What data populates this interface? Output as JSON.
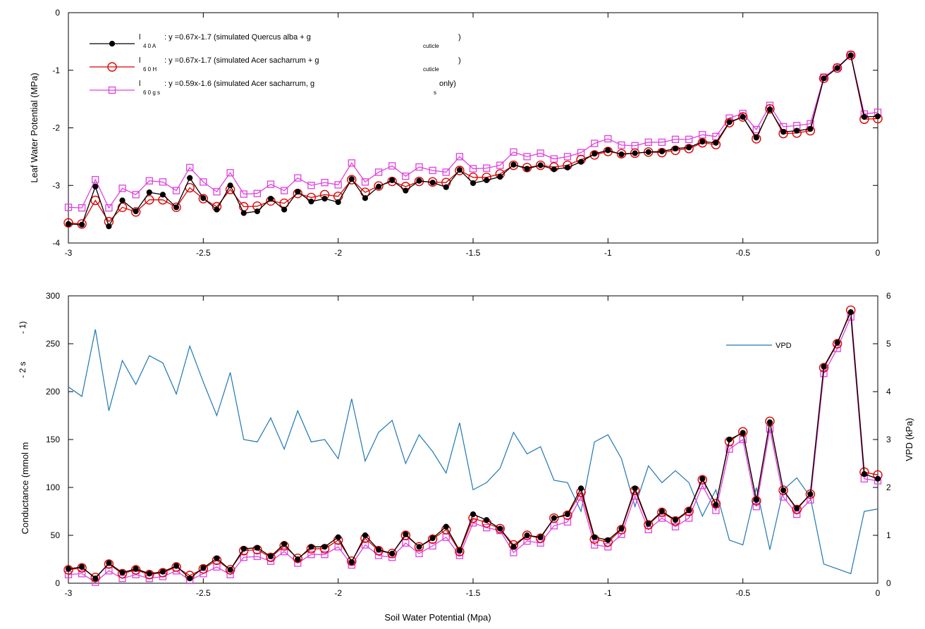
{
  "colors": {
    "quercus": "#000000",
    "acer": "#e00000",
    "acer_gs": "#e040e0",
    "vpd": "#1f77b4",
    "frame": "#000000"
  },
  "chart_data": [
    {
      "type": "line",
      "xlabel": "",
      "ylabel": "Leaf Water Potential (MPa)",
      "xlim": [
        -3,
        0
      ],
      "ylim": [
        -4,
        0
      ],
      "xticks": [
        "-3",
        "-2.5",
        "-2",
        "-1.5",
        "-1",
        "-0.5",
        "0"
      ],
      "yticks": [
        "-4",
        "-3",
        "-2",
        "-1",
        "0"
      ],
      "legend_position": "top-left",
      "grid": false,
      "x": [
        -3.0,
        -2.95,
        -2.9,
        -2.85,
        -2.8,
        -2.75,
        -2.7,
        -2.65,
        -2.6,
        -2.55,
        -2.5,
        -2.45,
        -2.4,
        -2.35,
        -2.3,
        -2.25,
        -2.2,
        -2.15,
        -2.1,
        -2.05,
        -2.0,
        -1.95,
        -1.9,
        -1.85,
        -1.8,
        -1.75,
        -1.7,
        -1.65,
        -1.6,
        -1.55,
        -1.5,
        -1.45,
        -1.4,
        -1.35,
        -1.3,
        -1.25,
        -1.2,
        -1.15,
        -1.1,
        -1.05,
        -1.0,
        -0.95,
        -0.9,
        -0.85,
        -0.8,
        -0.75,
        -0.7,
        -0.65,
        -0.6,
        -0.55,
        -0.5,
        -0.45,
        -0.4,
        -0.35,
        -0.3,
        -0.25,
        -0.2,
        -0.15,
        -0.1,
        -0.05,
        0.0
      ],
      "series": [
        {
          "name": "l40A",
          "legend_main": "l",
          "legend_sub": "4 0 A",
          "legend_text": ": y =0.67x-1.7  (simulated Quercus alba + g",
          "legend_tail_sub": "cuticle",
          "legend_tail": ")",
          "color_key": "quercus",
          "marker": "dot",
          "values": [
            -3.67,
            -3.68,
            -3.02,
            -3.71,
            -3.26,
            -3.45,
            -3.12,
            -3.16,
            -3.38,
            -2.87,
            -3.22,
            -3.42,
            -3.0,
            -3.48,
            -3.45,
            -3.23,
            -3.42,
            -3.11,
            -3.28,
            -3.23,
            -3.29,
            -2.89,
            -3.22,
            -3.02,
            -2.91,
            -3.09,
            -2.92,
            -2.95,
            -3.03,
            -2.73,
            -2.96,
            -2.91,
            -2.85,
            -2.64,
            -2.71,
            -2.65,
            -2.72,
            -2.69,
            -2.59,
            -2.45,
            -2.39,
            -2.46,
            -2.44,
            -2.42,
            -2.41,
            -2.36,
            -2.34,
            -2.24,
            -2.26,
            -1.9,
            -1.81,
            -2.17,
            -1.68,
            -2.07,
            -2.05,
            -2.02,
            -1.14,
            -0.96,
            -0.74,
            -1.81,
            -1.8
          ]
        },
        {
          "name": "l60H",
          "legend_main": "l",
          "legend_sub": "6 0 H",
          "legend_text": ": y =0.67x-1.7  (simulated Acer sacharrum + g",
          "legend_tail_sub": "cuticle",
          "legend_tail": ")",
          "color_key": "acer",
          "marker": "circle",
          "values": [
            -3.65,
            -3.67,
            -3.26,
            -3.63,
            -3.38,
            -3.46,
            -3.25,
            -3.25,
            -3.38,
            -3.04,
            -3.23,
            -3.37,
            -3.07,
            -3.37,
            -3.36,
            -3.27,
            -3.31,
            -3.14,
            -3.21,
            -3.16,
            -3.19,
            -2.9,
            -3.12,
            -3.01,
            -2.93,
            -3.02,
            -2.93,
            -2.94,
            -2.95,
            -2.74,
            -2.86,
            -2.86,
            -2.8,
            -2.65,
            -2.69,
            -2.65,
            -2.68,
            -2.65,
            -2.55,
            -2.47,
            -2.41,
            -2.45,
            -2.44,
            -2.42,
            -2.43,
            -2.39,
            -2.36,
            -2.26,
            -2.29,
            -1.91,
            -1.81,
            -2.19,
            -1.67,
            -2.1,
            -2.09,
            -2.05,
            -1.14,
            -0.96,
            -0.74,
            -1.85,
            -1.84
          ]
        },
        {
          "name": "l60gs",
          "legend_main": "l",
          "legend_sub": "6 0 g s",
          "legend_text": ": y =0.59x-1.6 (simulated Acer sacharrum, g",
          "legend_tail_sub": "s",
          "legend_tail": "only)",
          "color_key": "acer_gs",
          "marker": "square",
          "values": [
            -3.38,
            -3.39,
            -2.9,
            -3.39,
            -3.05,
            -3.16,
            -2.92,
            -2.94,
            -3.09,
            -2.69,
            -2.94,
            -3.11,
            -2.78,
            -3.15,
            -3.14,
            -2.98,
            -3.09,
            -2.87,
            -3.0,
            -2.95,
            -2.99,
            -2.61,
            -2.94,
            -2.77,
            -2.66,
            -2.84,
            -2.68,
            -2.74,
            -2.77,
            -2.5,
            -2.71,
            -2.7,
            -2.65,
            -2.42,
            -2.5,
            -2.44,
            -2.54,
            -2.5,
            -2.43,
            -2.27,
            -2.19,
            -2.3,
            -2.31,
            -2.25,
            -2.25,
            -2.2,
            -2.2,
            -2.12,
            -2.15,
            -1.83,
            -1.75,
            -2.03,
            -1.61,
            -1.98,
            -1.96,
            -1.93,
            -1.12,
            -0.95,
            -0.73,
            -1.76,
            -1.73
          ]
        }
      ]
    },
    {
      "type": "line",
      "xlabel": "Soil Water Potential (Mpa)",
      "ylabel": "Conductance (mmol m",
      "ylabel_sup1": "- 2 s",
      "ylabel_sup2": "- 1)",
      "y2label": "VPD (kPa)",
      "xlim": [
        -3,
        0
      ],
      "ylim": [
        0,
        300
      ],
      "y2lim": [
        0,
        6
      ],
      "xticks": [
        "-3",
        "-2.5",
        "-2",
        "-1.5",
        "-1",
        "-0.5",
        "0"
      ],
      "yticks": [
        "0",
        "50",
        "100",
        "150",
        "200",
        "250",
        "300"
      ],
      "y2ticks": [
        "0",
        "1",
        "2",
        "3",
        "4",
        "5",
        "6"
      ],
      "legend_position": "top-right",
      "grid": false,
      "x": [
        -3.0,
        -2.95,
        -2.9,
        -2.85,
        -2.8,
        -2.75,
        -2.7,
        -2.65,
        -2.6,
        -2.55,
        -2.5,
        -2.45,
        -2.4,
        -2.35,
        -2.3,
        -2.25,
        -2.2,
        -2.15,
        -2.1,
        -2.05,
        -2.0,
        -1.95,
        -1.9,
        -1.85,
        -1.8,
        -1.75,
        -1.7,
        -1.65,
        -1.6,
        -1.55,
        -1.5,
        -1.45,
        -1.4,
        -1.35,
        -1.3,
        -1.25,
        -1.2,
        -1.15,
        -1.1,
        -1.05,
        -1.0,
        -0.95,
        -0.9,
        -0.85,
        -0.8,
        -0.75,
        -0.7,
        -0.65,
        -0.6,
        -0.55,
        -0.5,
        -0.45,
        -0.4,
        -0.35,
        -0.3,
        -0.25,
        -0.2,
        -0.15,
        -0.1,
        -0.05,
        0.0
      ],
      "series": [
        {
          "name": "l40A",
          "color_key": "quercus",
          "marker": "dot",
          "axis": "left",
          "values": [
            15,
            17,
            5,
            21,
            11,
            15,
            10,
            12,
            18,
            5,
            16,
            26,
            14,
            36,
            37,
            28,
            41,
            25,
            38,
            38,
            48,
            22,
            50,
            35,
            31,
            51,
            38,
            47,
            59,
            34,
            72,
            66,
            57,
            38,
            50,
            48,
            68,
            72,
            99,
            48,
            45,
            57,
            99,
            62,
            75,
            66,
            76,
            109,
            82,
            150,
            157,
            87,
            168,
            97,
            78,
            93,
            226,
            251,
            283,
            114,
            109
          ]
        },
        {
          "name": "l60H",
          "color_key": "acer",
          "marker": "circle",
          "axis": "left",
          "values": [
            14,
            16,
            6,
            20,
            10,
            14,
            9,
            11,
            17,
            8,
            15,
            24,
            14,
            34,
            35,
            27,
            39,
            26,
            36,
            36,
            45,
            23,
            47,
            34,
            31,
            50,
            38,
            46,
            56,
            33,
            68,
            63,
            57,
            40,
            50,
            47,
            68,
            71,
            95,
            46,
            43,
            56,
            97,
            61,
            74,
            65,
            75,
            108,
            83,
            148,
            158,
            86,
            169,
            97,
            77,
            93,
            225,
            250,
            285,
            116,
            113
          ]
        },
        {
          "name": "l60gs",
          "color_key": "acer_gs",
          "marker": "square",
          "axis": "left",
          "values": [
            9,
            10,
            1,
            13,
            5,
            9,
            5,
            7,
            13,
            3,
            10,
            17,
            9,
            27,
            28,
            23,
            33,
            21,
            30,
            30,
            38,
            19,
            40,
            29,
            27,
            42,
            31,
            39,
            48,
            29,
            63,
            58,
            55,
            32,
            44,
            42,
            60,
            64,
            90,
            40,
            38,
            51,
            91,
            56,
            68,
            59,
            68,
            102,
            76,
            140,
            150,
            80,
            161,
            90,
            72,
            87,
            219,
            245,
            278,
            109,
            107
          ]
        },
        {
          "name": "VPD",
          "color_key": "vpd",
          "marker": "none",
          "axis": "right",
          "values": [
            4.1,
            3.9,
            5.3,
            3.6,
            4.65,
            4.15,
            4.75,
            4.6,
            3.95,
            4.95,
            4.2,
            3.5,
            4.4,
            3.0,
            2.95,
            3.45,
            2.8,
            3.6,
            2.95,
            3.0,
            2.6,
            3.85,
            2.55,
            3.15,
            3.4,
            2.5,
            3.1,
            2.75,
            2.3,
            3.35,
            1.95,
            2.1,
            2.4,
            3.15,
            2.7,
            2.85,
            2.15,
            2.1,
            1.5,
            2.95,
            3.1,
            2.6,
            1.6,
            2.45,
            2.1,
            2.35,
            2.1,
            1.4,
            1.95,
            0.9,
            0.8,
            2.0,
            0.7,
            1.95,
            2.2,
            1.8,
            0.4,
            0.3,
            0.2,
            1.5,
            1.55
          ]
        }
      ]
    }
  ]
}
